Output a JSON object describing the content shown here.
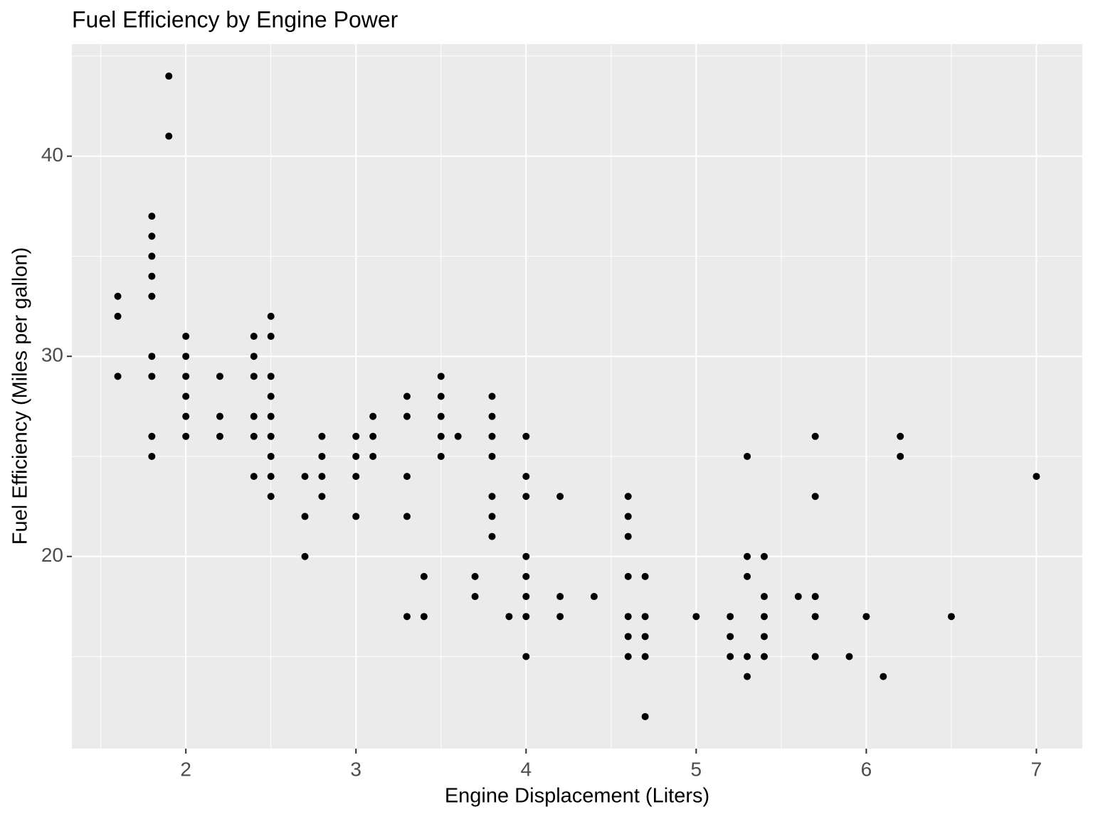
{
  "chart_data": {
    "type": "scatter",
    "title": "Fuel Efficiency by Engine Power",
    "x_label": "Engine Displacement (Liters)",
    "y_label": "Fuel Efficiency (Miles per gallon)",
    "color": "#000000",
    "x": [
      1.6,
      1.6,
      1.6,
      1.8,
      1.8,
      1.8,
      1.8,
      1.8,
      1.8,
      1.8,
      1.8,
      1.8,
      1.9,
      1.9,
      2.0,
      2.0,
      2.0,
      2.0,
      2.0,
      2.0,
      2.2,
      2.2,
      2.2,
      2.4,
      2.4,
      2.4,
      2.4,
      2.4,
      2.4,
      2.5,
      2.5,
      2.5,
      2.5,
      2.5,
      2.5,
      2.5,
      2.5,
      2.5,
      2.7,
      2.7,
      2.7,
      2.8,
      2.8,
      2.8,
      2.8,
      3.0,
      3.0,
      3.0,
      3.0,
      3.1,
      3.1,
      3.1,
      3.3,
      3.3,
      3.3,
      3.3,
      3.3,
      3.4,
      3.4,
      3.5,
      3.5,
      3.5,
      3.5,
      3.5,
      3.6,
      3.7,
      3.7,
      3.8,
      3.8,
      3.8,
      3.8,
      3.8,
      3.8,
      3.8,
      3.9,
      4.0,
      4.0,
      4.0,
      4.0,
      4.0,
      4.0,
      4.0,
      4.0,
      4.2,
      4.2,
      4.2,
      4.4,
      4.6,
      4.6,
      4.6,
      4.6,
      4.6,
      4.6,
      4.6,
      4.7,
      4.7,
      4.7,
      4.7,
      4.7,
      5.0,
      5.2,
      5.2,
      5.2,
      5.3,
      5.3,
      5.3,
      5.3,
      5.3,
      5.4,
      5.4,
      5.4,
      5.4,
      5.4,
      5.6,
      5.7,
      5.7,
      5.7,
      5.7,
      5.7,
      5.9,
      6.0,
      6.1,
      6.2,
      6.2,
      6.5,
      7.0
    ],
    "values": [
      33,
      32,
      29,
      37,
      36,
      35,
      34,
      33,
      30,
      29,
      26,
      25,
      44,
      41,
      31,
      30,
      29,
      28,
      27,
      26,
      29,
      27,
      26,
      31,
      30,
      29,
      27,
      26,
      24,
      32,
      31,
      29,
      28,
      27,
      26,
      25,
      24,
      23,
      24,
      22,
      20,
      26,
      25,
      24,
      23,
      26,
      25,
      24,
      22,
      27,
      26,
      25,
      28,
      27,
      24,
      22,
      17,
      19,
      17,
      29,
      28,
      27,
      26,
      25,
      26,
      19,
      18,
      28,
      27,
      26,
      25,
      23,
      22,
      21,
      17,
      26,
      24,
      23,
      20,
      19,
      18,
      17,
      15,
      23,
      18,
      17,
      18,
      23,
      22,
      21,
      19,
      17,
      16,
      15,
      19,
      17,
      16,
      15,
      12,
      17,
      17,
      16,
      15,
      25,
      20,
      19,
      15,
      14,
      20,
      18,
      17,
      16,
      15,
      18,
      26,
      23,
      18,
      17,
      15,
      15,
      17,
      14,
      26,
      25,
      17,
      24
    ],
    "xlim": [
      1.33,
      7.27
    ],
    "ylim": [
      10.4,
      45.6
    ],
    "xticks": [
      2,
      3,
      4,
      5,
      6,
      7
    ],
    "yticks": [
      20,
      30,
      40
    ],
    "xminor": [
      1.5,
      2.5,
      3.5,
      4.5,
      5.5,
      6.5
    ],
    "yminor": [
      15,
      25,
      35,
      45
    ],
    "grid": true
  }
}
